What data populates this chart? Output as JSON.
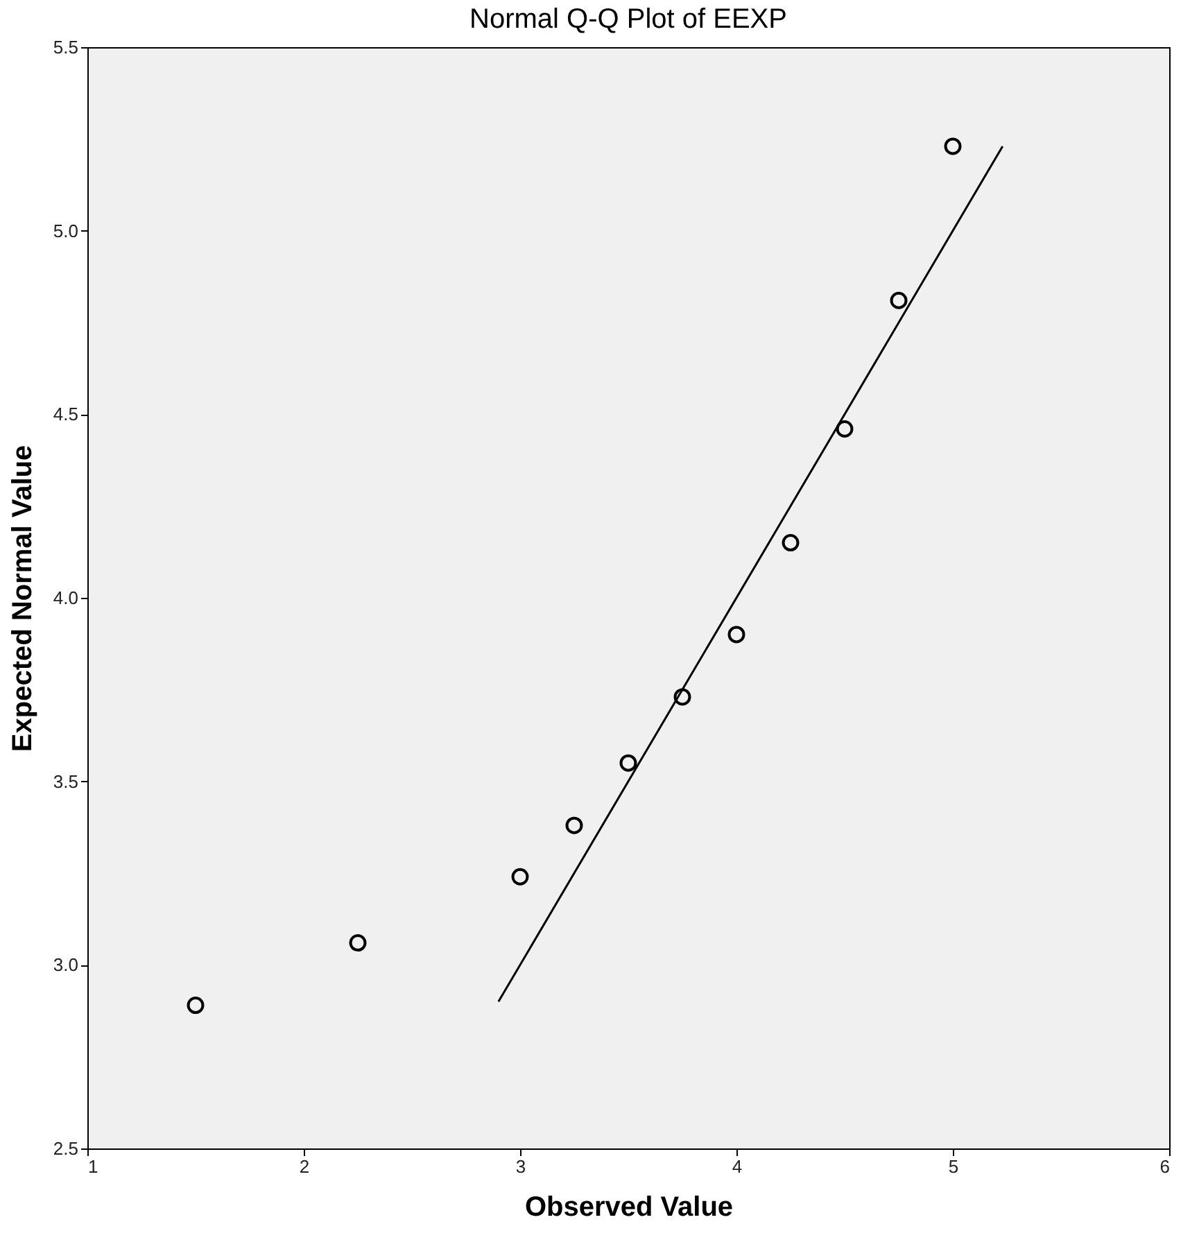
{
  "chart_data": {
    "type": "scatter",
    "title": "Normal Q-Q Plot of EEXP",
    "xlabel": "Observed Value",
    "ylabel": "Expected Normal Value",
    "x": [
      1.5,
      2.25,
      3.0,
      3.25,
      3.5,
      3.75,
      4.0,
      4.25,
      4.5,
      4.75,
      5.0
    ],
    "series": [
      {
        "color": "#000000",
        "marker": "circle",
        "values": [
          2.89,
          3.06,
          3.24,
          3.38,
          3.55,
          3.73,
          3.9,
          4.15,
          4.46,
          4.81,
          5.23
        ]
      },
      {
        "type": "line",
        "color": "#000000",
        "x": [
          2.9,
          5.23
        ],
        "values": [
          2.9,
          5.23
        ]
      }
    ],
    "grid": false,
    "xlim": [
      1,
      6
    ],
    "xticks": [
      1,
      2,
      3,
      4,
      5,
      6
    ],
    "ylim": [
      2.5,
      5.5
    ],
    "yticks": [
      {
        "value": 2.5,
        "label": "2.5"
      },
      {
        "value": 3,
        "label": "3.0"
      },
      {
        "value": 3.5,
        "label": "3.5"
      },
      {
        "value": 4,
        "label": "4.0"
      },
      {
        "value": 4.5,
        "label": "4.5"
      },
      {
        "value": 5,
        "label": "5.0"
      },
      {
        "value": 5.5,
        "label": "5.5"
      }
    ]
  }
}
